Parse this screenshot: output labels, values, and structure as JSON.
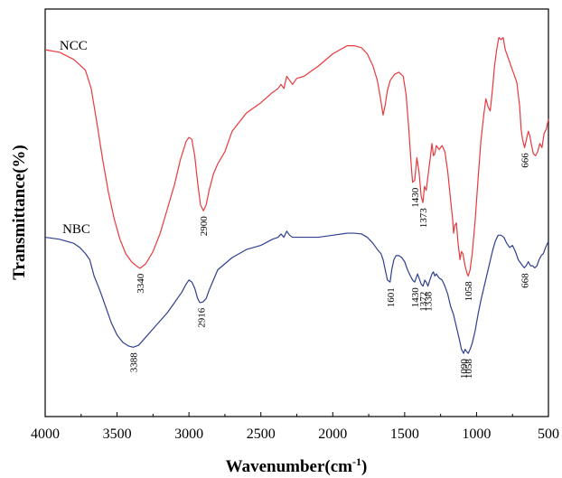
{
  "chart_data": {
    "type": "line",
    "title": "",
    "xlabel": "Wavenumber(cm",
    "xlabel_sup": "-1",
    "xlabel_close": ")",
    "ylabel": "Transmittance(%)",
    "xlim": [
      4000,
      500
    ],
    "ylim": [
      0,
      100
    ],
    "x_reversed": true,
    "x_ticks": [
      4000,
      3500,
      3000,
      2500,
      2000,
      1500,
      1000,
      500
    ],
    "x_tick_labels": [
      "4000",
      "3500",
      "3000",
      "2500",
      "2000",
      "1500",
      "1000",
      "500"
    ],
    "grid": false,
    "series": [
      {
        "name": "NCC",
        "color": "#e8393f",
        "label_at": [
          3900,
          90
        ],
        "points": [
          [
            4000,
            90.0
          ],
          [
            3900,
            89.4
          ],
          [
            3800,
            87.6
          ],
          [
            3720,
            85.0
          ],
          [
            3680,
            80.5
          ],
          [
            3640,
            72.0
          ],
          [
            3600,
            63.0
          ],
          [
            3560,
            55.0
          ],
          [
            3520,
            48.5
          ],
          [
            3480,
            43.5
          ],
          [
            3440,
            40.0
          ],
          [
            3400,
            38.0
          ],
          [
            3360,
            36.8
          ],
          [
            3340,
            36.4
          ],
          [
            3300,
            37.5
          ],
          [
            3250,
            40.5
          ],
          [
            3200,
            45.0
          ],
          [
            3150,
            51.0
          ],
          [
            3100,
            57.0
          ],
          [
            3060,
            63.0
          ],
          [
            3020,
            67.5
          ],
          [
            3000,
            68.5
          ],
          [
            2980,
            68.0
          ],
          [
            2960,
            64.0
          ],
          [
            2940,
            57.5
          ],
          [
            2920,
            52.0
          ],
          [
            2900,
            50.5
          ],
          [
            2880,
            52.0
          ],
          [
            2860,
            55.5
          ],
          [
            2830,
            59.5
          ],
          [
            2800,
            62.0
          ],
          [
            2750,
            65.0
          ],
          [
            2700,
            70.0
          ],
          [
            2600,
            74.5
          ],
          [
            2500,
            77.0
          ],
          [
            2420,
            79.5
          ],
          [
            2380,
            80.5
          ],
          [
            2360,
            81.5
          ],
          [
            2340,
            80.5
          ],
          [
            2320,
            83.5
          ],
          [
            2300,
            82.5
          ],
          [
            2280,
            81.5
          ],
          [
            2250,
            83.0
          ],
          [
            2200,
            83.5
          ],
          [
            2100,
            86.0
          ],
          [
            2000,
            89.0
          ],
          [
            1900,
            91.0
          ],
          [
            1850,
            91.0
          ],
          [
            1800,
            90.5
          ],
          [
            1760,
            89.0
          ],
          [
            1720,
            86.0
          ],
          [
            1690,
            82.5
          ],
          [
            1670,
            78.5
          ],
          [
            1650,
            74.0
          ],
          [
            1635,
            76.5
          ],
          [
            1620,
            80.0
          ],
          [
            1600,
            82.5
          ],
          [
            1570,
            84.0
          ],
          [
            1540,
            84.5
          ],
          [
            1510,
            83.5
          ],
          [
            1490,
            79.0
          ],
          [
            1470,
            70.0
          ],
          [
            1455,
            62.0
          ],
          [
            1445,
            57.5
          ],
          [
            1430,
            58.0
          ],
          [
            1415,
            63.5
          ],
          [
            1400,
            60.0
          ],
          [
            1385,
            54.0
          ],
          [
            1373,
            52.5
          ],
          [
            1362,
            56.5
          ],
          [
            1350,
            55.5
          ],
          [
            1338,
            59.0
          ],
          [
            1320,
            64.0
          ],
          [
            1310,
            67.0
          ],
          [
            1300,
            64.0
          ],
          [
            1290,
            64.5
          ],
          [
            1280,
            66.5
          ],
          [
            1260,
            65.5
          ],
          [
            1240,
            66.5
          ],
          [
            1220,
            65.0
          ],
          [
            1200,
            60.0
          ],
          [
            1180,
            53.0
          ],
          [
            1165,
            48.0
          ],
          [
            1160,
            45.0
          ],
          [
            1150,
            47.0
          ],
          [
            1140,
            47.5
          ],
          [
            1130,
            43.0
          ],
          [
            1115,
            38.5
          ],
          [
            1105,
            40.5
          ],
          [
            1095,
            40.0
          ],
          [
            1080,
            37.0
          ],
          [
            1065,
            35.0
          ],
          [
            1058,
            34.5
          ],
          [
            1045,
            36.0
          ],
          [
            1030,
            40.0
          ],
          [
            1010,
            48.0
          ],
          [
            990,
            58.0
          ],
          [
            970,
            67.5
          ],
          [
            950,
            74.0
          ],
          [
            935,
            78.0
          ],
          [
            920,
            76.0
          ],
          [
            905,
            75.0
          ],
          [
            890,
            80.0
          ],
          [
            875,
            86.0
          ],
          [
            860,
            90.0
          ],
          [
            845,
            93.0
          ],
          [
            830,
            92.5
          ],
          [
            815,
            93.0
          ],
          [
            800,
            90.0
          ],
          [
            780,
            88.0
          ],
          [
            760,
            86.0
          ],
          [
            740,
            84.0
          ],
          [
            720,
            82.0
          ],
          [
            700,
            76.0
          ],
          [
            690,
            70.5
          ],
          [
            680,
            68.0
          ],
          [
            666,
            66.0
          ],
          [
            650,
            68.5
          ],
          [
            640,
            70.0
          ],
          [
            630,
            69.0
          ],
          [
            620,
            67.0
          ],
          [
            605,
            64.5
          ],
          [
            590,
            64.0
          ],
          [
            575,
            65.0
          ],
          [
            560,
            67.0
          ],
          [
            545,
            66.0
          ],
          [
            530,
            69.5
          ],
          [
            515,
            70.5
          ],
          [
            500,
            73.0
          ]
        ]
      },
      {
        "name": "NBC",
        "color": "#2f3f8f",
        "label_at": [
          3880,
          45
        ],
        "points": [
          [
            4000,
            44.0
          ],
          [
            3900,
            43.5
          ],
          [
            3800,
            42.5
          ],
          [
            3760,
            41.5
          ],
          [
            3720,
            40.0
          ],
          [
            3690,
            38.5
          ],
          [
            3660,
            34.5
          ],
          [
            3620,
            31.0
          ],
          [
            3580,
            27.0
          ],
          [
            3540,
            23.0
          ],
          [
            3500,
            20.0
          ],
          [
            3460,
            18.2
          ],
          [
            3420,
            17.3
          ],
          [
            3388,
            17.0
          ],
          [
            3350,
            17.5
          ],
          [
            3300,
            19.5
          ],
          [
            3250,
            21.5
          ],
          [
            3200,
            23.5
          ],
          [
            3150,
            25.5
          ],
          [
            3100,
            28.0
          ],
          [
            3050,
            30.5
          ],
          [
            3020,
            32.5
          ],
          [
            3000,
            33.5
          ],
          [
            2980,
            33.0
          ],
          [
            2960,
            31.5
          ],
          [
            2940,
            29.0
          ],
          [
            2925,
            28.0
          ],
          [
            2916,
            28.0
          ],
          [
            2900,
            28.2
          ],
          [
            2880,
            29.0
          ],
          [
            2860,
            31.0
          ],
          [
            2830,
            33.5
          ],
          [
            2800,
            36.0
          ],
          [
            2750,
            37.5
          ],
          [
            2700,
            39.0
          ],
          [
            2600,
            41.0
          ],
          [
            2500,
            42.0
          ],
          [
            2420,
            43.5
          ],
          [
            2380,
            44.0
          ],
          [
            2360,
            44.8
          ],
          [
            2340,
            44.0
          ],
          [
            2320,
            45.5
          ],
          [
            2300,
            44.5
          ],
          [
            2280,
            44.0
          ],
          [
            2200,
            44.0
          ],
          [
            2100,
            44.0
          ],
          [
            2000,
            44.5
          ],
          [
            1900,
            45.0
          ],
          [
            1850,
            45.0
          ],
          [
            1800,
            44.8
          ],
          [
            1760,
            44.0
          ],
          [
            1720,
            42.5
          ],
          [
            1690,
            41.0
          ],
          [
            1665,
            40.0
          ],
          [
            1650,
            38.5
          ],
          [
            1635,
            36.0
          ],
          [
            1620,
            33.5
          ],
          [
            1601,
            33.0
          ],
          [
            1590,
            36.0
          ],
          [
            1575,
            38.5
          ],
          [
            1560,
            39.5
          ],
          [
            1540,
            39.5
          ],
          [
            1520,
            39.0
          ],
          [
            1500,
            38.0
          ],
          [
            1480,
            36.0
          ],
          [
            1460,
            34.5
          ],
          [
            1445,
            33.5
          ],
          [
            1430,
            33.0
          ],
          [
            1420,
            34.0
          ],
          [
            1410,
            35.0
          ],
          [
            1395,
            33.5
          ],
          [
            1385,
            32.5
          ],
          [
            1372,
            32.0
          ],
          [
            1360,
            33.5
          ],
          [
            1350,
            33.0
          ],
          [
            1338,
            32.0
          ],
          [
            1325,
            33.5
          ],
          [
            1310,
            35.0
          ],
          [
            1300,
            35.5
          ],
          [
            1290,
            34.5
          ],
          [
            1280,
            35.0
          ],
          [
            1260,
            34.0
          ],
          [
            1240,
            33.5
          ],
          [
            1220,
            32.0
          ],
          [
            1200,
            30.0
          ],
          [
            1180,
            27.0
          ],
          [
            1160,
            25.0
          ],
          [
            1140,
            22.0
          ],
          [
            1120,
            19.0
          ],
          [
            1105,
            16.5
          ],
          [
            1090,
            15.5
          ],
          [
            1080,
            16.5
          ],
          [
            1070,
            16.0
          ],
          [
            1058,
            15.5
          ],
          [
            1045,
            16.5
          ],
          [
            1030,
            18.0
          ],
          [
            1010,
            21.0
          ],
          [
            990,
            25.0
          ],
          [
            970,
            28.5
          ],
          [
            950,
            31.5
          ],
          [
            930,
            34.5
          ],
          [
            910,
            37.5
          ],
          [
            890,
            40.5
          ],
          [
            870,
            43.0
          ],
          [
            850,
            44.5
          ],
          [
            830,
            44.5
          ],
          [
            810,
            44.0
          ],
          [
            790,
            42.5
          ],
          [
            770,
            41.5
          ],
          [
            750,
            42.0
          ],
          [
            730,
            40.5
          ],
          [
            710,
            38.5
          ],
          [
            690,
            37.5
          ],
          [
            680,
            37.0
          ],
          [
            668,
            36.5
          ],
          [
            655,
            37.0
          ],
          [
            640,
            38.0
          ],
          [
            625,
            37.0
          ],
          [
            610,
            37.0
          ],
          [
            595,
            36.5
          ],
          [
            580,
            37.0
          ],
          [
            565,
            38.5
          ],
          [
            550,
            39.5
          ],
          [
            535,
            40.0
          ],
          [
            520,
            41.5
          ],
          [
            500,
            43.0
          ]
        ]
      }
    ],
    "annotations": [
      {
        "series": "NCC",
        "x": 3340,
        "label": "3340",
        "y": 36.4
      },
      {
        "series": "NCC",
        "x": 2900,
        "label": "2900",
        "y": 50.5
      },
      {
        "series": "NCC",
        "x": 1430,
        "label": "1430",
        "y": 57.5
      },
      {
        "series": "NCC",
        "x": 1373,
        "label": "1373",
        "y": 52.5
      },
      {
        "series": "NCC",
        "x": 1058,
        "label": "1058",
        "y": 34.5
      },
      {
        "series": "NCC",
        "x": 666,
        "label": "666",
        "y": 66.0
      },
      {
        "series": "NBC",
        "x": 3388,
        "label": "3388",
        "y": 17.0
      },
      {
        "series": "NBC",
        "x": 2916,
        "label": "2916",
        "y": 28.0
      },
      {
        "series": "NBC",
        "x": 1601,
        "label": "1601",
        "y": 33.0
      },
      {
        "series": "NBC",
        "x": 1430,
        "label": "1430",
        "y": 33.0
      },
      {
        "series": "NBC",
        "x": 1372,
        "label": "1372",
        "y": 32.0
      },
      {
        "series": "NBC",
        "x": 1338,
        "label": "1338",
        "y": 32.0
      },
      {
        "series": "NBC",
        "x": 1090,
        "label": "1090",
        "y": 15.5
      },
      {
        "series": "NBC",
        "x": 1058,
        "label": "1058",
        "y": 15.5
      },
      {
        "series": "NBC",
        "x": 668,
        "label": "668",
        "y": 36.5
      }
    ]
  }
}
